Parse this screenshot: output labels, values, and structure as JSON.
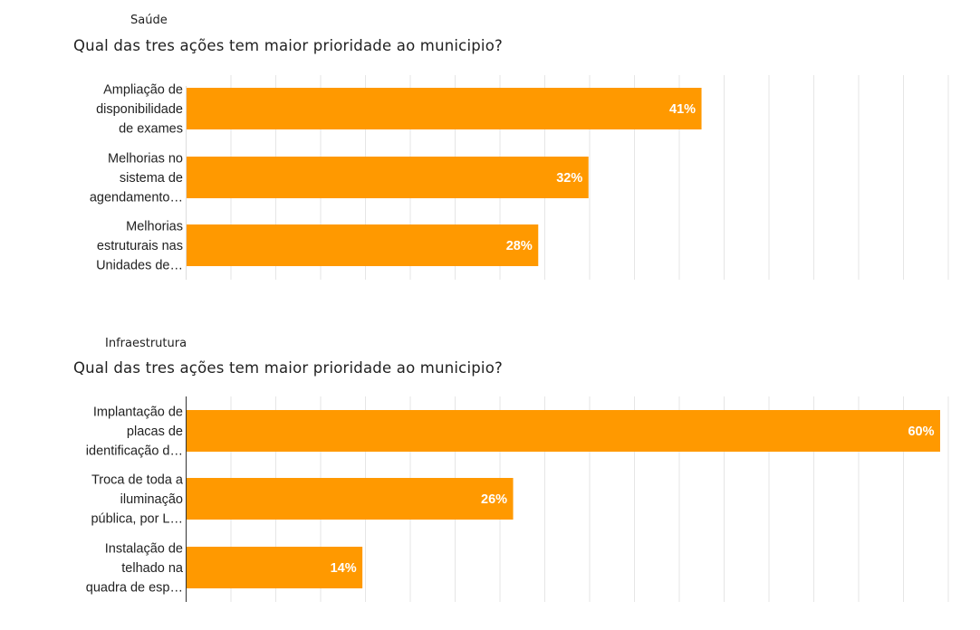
{
  "chart_data": [
    {
      "type": "bar",
      "orientation": "horizontal",
      "section": "Saúde",
      "title": "Qual das tres ações tem maior prioridade ao municipio?",
      "categories": [
        [
          "Ampliação de",
          "disponibilidade",
          "de exames"
        ],
        [
          "Melhorias no",
          "sistema de",
          "agendamento…"
        ],
        [
          "Melhorias",
          "estruturais nas",
          "Unidades de…"
        ]
      ],
      "values": [
        41,
        32,
        28
      ],
      "value_labels": [
        "41%",
        "32%",
        "28%"
      ],
      "unit": "%",
      "color": "#ff9900",
      "xlim": [
        0,
        60
      ],
      "grid": true
    },
    {
      "type": "bar",
      "orientation": "horizontal",
      "section": "Infraestrutura",
      "title": "Qual das tres ações tem maior prioridade ao municipio?",
      "categories": [
        [
          "Implantação de",
          "placas de",
          "identificação d…"
        ],
        [
          "Troca de toda a",
          "iluminação",
          "pública, por L…"
        ],
        [
          "Instalação de",
          "telhado na",
          "quadra de esp…"
        ]
      ],
      "values": [
        60,
        26,
        14
      ],
      "value_labels": [
        "60%",
        "26%",
        "14%"
      ],
      "unit": "%",
      "color": "#ff9900",
      "xlim": [
        0,
        60
      ],
      "grid": true
    }
  ]
}
